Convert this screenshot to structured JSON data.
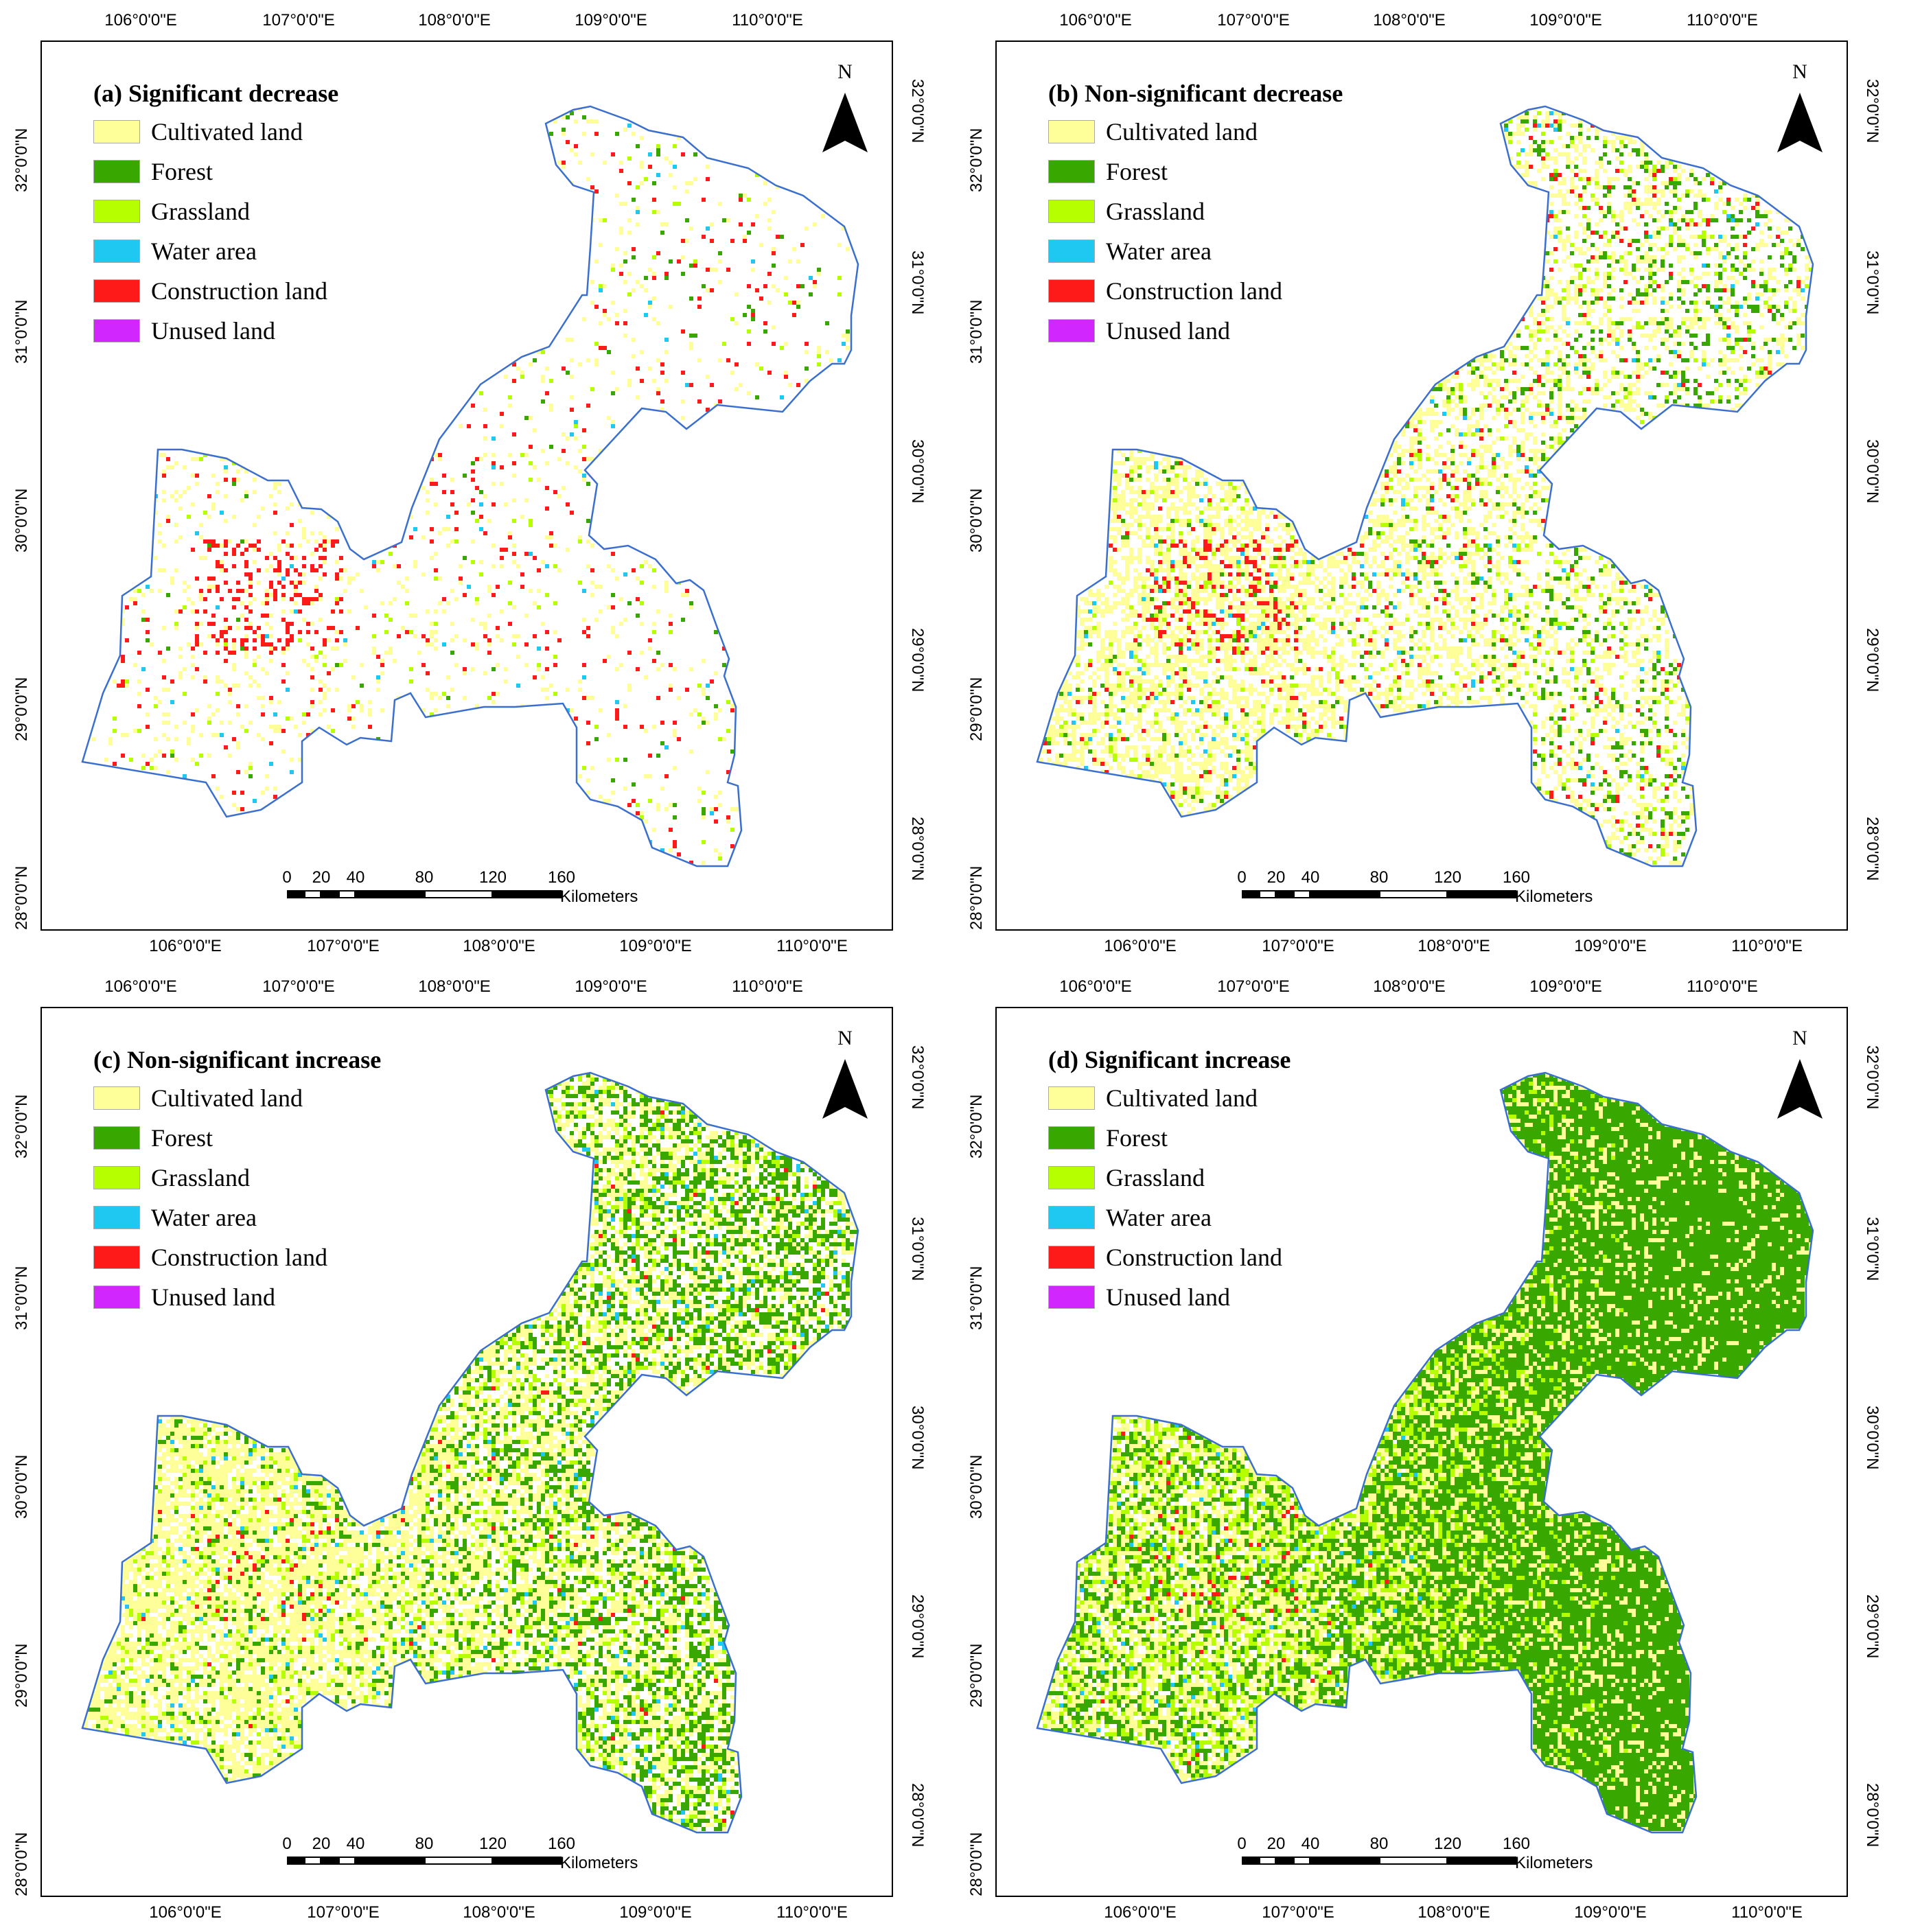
{
  "figure": {
    "panels": [
      {
        "id": "a",
        "title": "(a) Significant decrease",
        "density": {
          "cultivated": 0.06,
          "forest": 0.008,
          "grassland": 0.01,
          "water": 0.004,
          "construction": 0.02
        }
      },
      {
        "id": "b",
        "title": "(b) Non-significant decrease",
        "density": {
          "cultivated": 0.32,
          "forest": 0.06,
          "grassland": 0.04,
          "water": 0.01,
          "construction": 0.02
        }
      },
      {
        "id": "c",
        "title": "(c) Non-significant increase",
        "density": {
          "cultivated": 0.42,
          "forest": 0.22,
          "grassland": 0.08,
          "water": 0.015,
          "construction": 0.006
        }
      },
      {
        "id": "d",
        "title": "(d) Significant increase",
        "density": {
          "cultivated": 0.25,
          "forest": 0.62,
          "grassland": 0.22,
          "water": 0.012,
          "construction": 0.005
        }
      }
    ],
    "legend": [
      {
        "key": "cultivated",
        "label": "Cultivated land",
        "color": "#ffff99"
      },
      {
        "key": "forest",
        "label": "Forest",
        "color": "#38a800"
      },
      {
        "key": "grassland",
        "label": "Grassland",
        "color": "#b5ff00"
      },
      {
        "key": "water",
        "label": "Water area",
        "color": "#1ec8f0"
      },
      {
        "key": "construction",
        "label": "Construction land",
        "color": "#ff1a1a"
      },
      {
        "key": "unused",
        "label": "Unused land",
        "color": "#d226ff"
      }
    ],
    "north_label": "N",
    "axes": {
      "top_ticks": [
        "106°0'0\"E",
        "107°0'0\"E",
        "108°0'0\"E",
        "109°0'0\"E",
        "110°0'0\"E"
      ],
      "bottom_ticks": [
        "106°0'0\"E",
        "107°0'0\"E",
        "108°0'0\"E",
        "109°0'0\"E",
        "110°0'0\"E"
      ],
      "left_ticks": [
        "32°0'0\"N",
        "31°0'0\"N",
        "30°0'0\"N",
        "29°0'0\"N",
        "28°0'0\"N"
      ],
      "right_ticks": [
        "32°0'0\"N",
        "31°0'0\"N",
        "30°0'0\"N",
        "29°0'0\"N",
        "28°0'0\"N"
      ]
    },
    "scale": {
      "numbers": [
        "0",
        "20",
        "40",
        "80",
        "120",
        "160"
      ],
      "unit": "Kilometers"
    },
    "boundary_color": "#3a6fd0"
  }
}
